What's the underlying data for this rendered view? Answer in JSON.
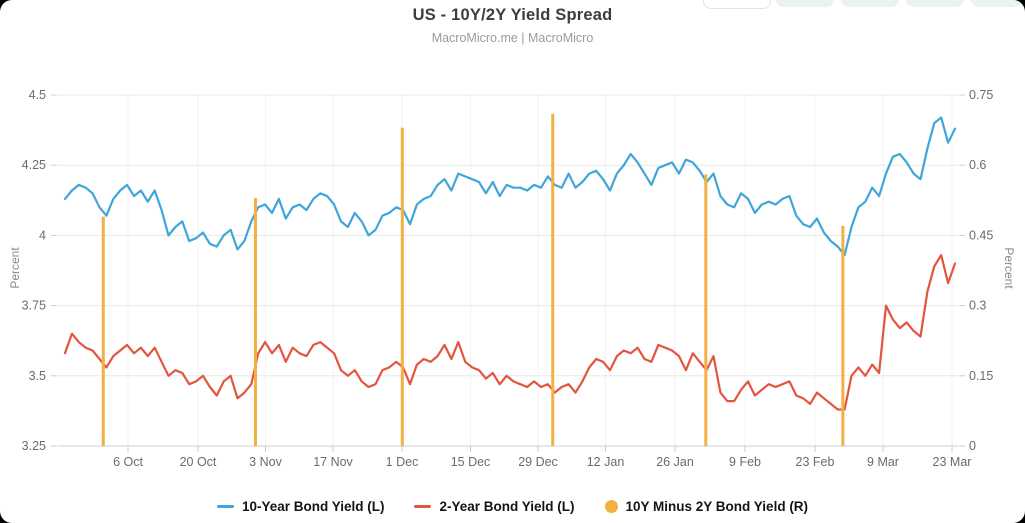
{
  "header": {
    "title": "US - 10Y/2Y Yield Spread",
    "subtitle": "MacroMicro.me | MacroMicro"
  },
  "legend": {
    "items": [
      {
        "label": "10-Year Bond Yield (L)",
        "color": "#3FA5DB",
        "marker": "line"
      },
      {
        "label": "2-Year Bond Yield (L)",
        "color": "#E2553F",
        "marker": "line"
      },
      {
        "label": "10Y Minus 2Y Bond Yield (R)",
        "color": "#F4B042",
        "marker": "circle"
      }
    ]
  },
  "chart_data": {
    "type": "line",
    "title": "US - 10Y/2Y Yield Spread",
    "subtitle": "MacroMicro.me | MacroMicro",
    "grid": true,
    "legend_position": "bottom",
    "x_ticks": [
      "6 Oct",
      "20 Oct",
      "3 Nov",
      "17 Nov",
      "1 Dec",
      "15 Dec",
      "29 Dec",
      "12 Jan",
      "26 Jan",
      "9 Feb",
      "23 Feb",
      "9 Mar",
      "23 Mar"
    ],
    "left_axis": {
      "label": "Percent",
      "min": 3.25,
      "max": 4.5,
      "ticks": [
        4.5,
        4.25,
        4,
        3.75,
        3.5,
        3.25
      ]
    },
    "right_axis": {
      "label": "Percent",
      "min": 0,
      "max": 0.75,
      "ticks": [
        0.75,
        0.6,
        0.45,
        0.3,
        0.15,
        0
      ]
    },
    "series": [
      {
        "name": "10-Year Bond Yield (L)",
        "type": "line",
        "axis": "left",
        "color": "#3FA5DB",
        "values": [
          4.13,
          4.16,
          4.18,
          4.17,
          4.15,
          4.1,
          4.07,
          4.13,
          4.16,
          4.18,
          4.14,
          4.16,
          4.12,
          4.16,
          4.09,
          4.0,
          4.03,
          4.05,
          3.98,
          3.99,
          4.01,
          3.97,
          3.96,
          4.0,
          4.02,
          3.95,
          3.98,
          4.05,
          4.1,
          4.11,
          4.08,
          4.13,
          4.06,
          4.1,
          4.11,
          4.09,
          4.13,
          4.15,
          4.14,
          4.11,
          4.05,
          4.03,
          4.08,
          4.05,
          4.0,
          4.02,
          4.07,
          4.08,
          4.1,
          4.09,
          4.04,
          4.11,
          4.13,
          4.14,
          4.18,
          4.2,
          4.16,
          4.22,
          4.21,
          4.2,
          4.19,
          4.15,
          4.19,
          4.14,
          4.18,
          4.17,
          4.17,
          4.16,
          4.18,
          4.17,
          4.21,
          4.18,
          4.17,
          4.22,
          4.17,
          4.19,
          4.22,
          4.23,
          4.2,
          4.16,
          4.22,
          4.25,
          4.29,
          4.26,
          4.22,
          4.18,
          4.24,
          4.25,
          4.26,
          4.22,
          4.27,
          4.26,
          4.23,
          4.19,
          4.22,
          4.14,
          4.11,
          4.1,
          4.15,
          4.13,
          4.08,
          4.11,
          4.12,
          4.11,
          4.13,
          4.14,
          4.07,
          4.04,
          4.03,
          4.06,
          4.01,
          3.98,
          3.96,
          3.93,
          4.03,
          4.1,
          4.12,
          4.17,
          4.14,
          4.22,
          4.28,
          4.29,
          4.26,
          4.22,
          4.2,
          4.31,
          4.4,
          4.42,
          4.33,
          4.38
        ]
      },
      {
        "name": "2-Year Bond Yield (L)",
        "type": "line",
        "axis": "left",
        "color": "#E2553F",
        "values": [
          3.58,
          3.65,
          3.62,
          3.6,
          3.59,
          3.56,
          3.53,
          3.57,
          3.59,
          3.61,
          3.58,
          3.6,
          3.57,
          3.6,
          3.55,
          3.5,
          3.52,
          3.51,
          3.47,
          3.48,
          3.5,
          3.46,
          3.43,
          3.48,
          3.5,
          3.42,
          3.44,
          3.47,
          3.58,
          3.62,
          3.58,
          3.61,
          3.55,
          3.6,
          3.58,
          3.57,
          3.61,
          3.62,
          3.6,
          3.58,
          3.52,
          3.5,
          3.52,
          3.48,
          3.46,
          3.47,
          3.52,
          3.53,
          3.55,
          3.53,
          3.47,
          3.54,
          3.56,
          3.55,
          3.57,
          3.61,
          3.56,
          3.62,
          3.55,
          3.53,
          3.52,
          3.49,
          3.51,
          3.47,
          3.5,
          3.48,
          3.47,
          3.46,
          3.48,
          3.46,
          3.47,
          3.44,
          3.46,
          3.47,
          3.44,
          3.48,
          3.53,
          3.56,
          3.55,
          3.52,
          3.57,
          3.59,
          3.58,
          3.6,
          3.56,
          3.55,
          3.61,
          3.6,
          3.59,
          3.57,
          3.52,
          3.58,
          3.55,
          3.52,
          3.57,
          3.44,
          3.41,
          3.41,
          3.45,
          3.48,
          3.43,
          3.45,
          3.47,
          3.46,
          3.47,
          3.48,
          3.43,
          3.42,
          3.4,
          3.44,
          3.42,
          3.4,
          3.38,
          3.38,
          3.5,
          3.53,
          3.5,
          3.54,
          3.51,
          3.75,
          3.7,
          3.67,
          3.69,
          3.66,
          3.64,
          3.8,
          3.89,
          3.93,
          3.83,
          3.9
        ]
      },
      {
        "name": "10Y Minus 2Y Bond Yield (R)",
        "type": "bar",
        "axis": "right",
        "color": "#F4B042",
        "points": [
          {
            "x_frac": 0.043,
            "value": 0.49
          },
          {
            "x_frac": 0.214,
            "value": 0.53
          },
          {
            "x_frac": 0.379,
            "value": 0.68
          },
          {
            "x_frac": 0.548,
            "value": 0.71
          },
          {
            "x_frac": 0.72,
            "value": 0.58
          },
          {
            "x_frac": 0.874,
            "value": 0.47
          }
        ]
      }
    ]
  },
  "theme": {
    "background": "#ffffff",
    "grid_color": "#e8e8e8",
    "axis_line_color": "#cfcfcf",
    "tick_color": "#cccccc",
    "axis_text_color": "#6b6b6b",
    "title_color": "#3d3d3d",
    "subtitle_color": "#9b9b9b",
    "tab_pill_color": "#e9f4f0"
  }
}
